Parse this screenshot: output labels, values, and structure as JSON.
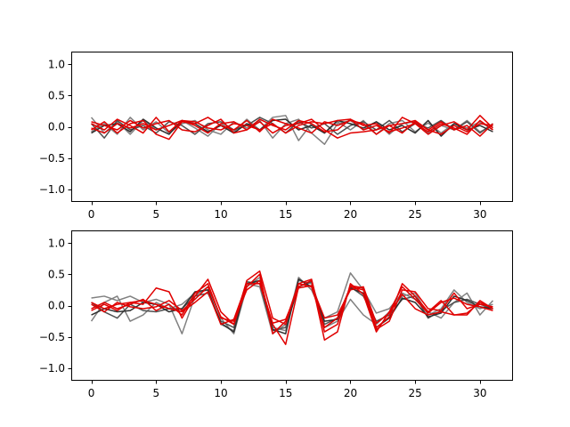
{
  "chart_data": [
    {
      "type": "line",
      "title": "",
      "xlabel": "",
      "ylabel": "",
      "xlim": [
        -1.55,
        32.55
      ],
      "ylim": [
        -1.2,
        1.2
      ],
      "xticks": [
        0,
        5,
        10,
        15,
        20,
        25,
        30
      ],
      "yticks": [
        -1.0,
        -0.5,
        0.0,
        0.5,
        1.0
      ],
      "xtick_labels": [
        "0",
        "5",
        "10",
        "15",
        "20",
        "25",
        "30"
      ],
      "ytick_labels": [
        "−1.0",
        "−0.5",
        "0.0",
        "0.5",
        "1.0"
      ],
      "grid": false,
      "legend": "none",
      "x": [
        0,
        1,
        2,
        3,
        4,
        5,
        6,
        7,
        8,
        9,
        10,
        11,
        12,
        13,
        14,
        15,
        16,
        17,
        18,
        19,
        20,
        21,
        22,
        23,
        24,
        25,
        26,
        27,
        28,
        29,
        30,
        31
      ],
      "series": [
        {
          "color": "#808080",
          "values": [
            0.15,
            -0.1,
            0.08,
            -0.12,
            0.1,
            -0.05,
            0.02,
            0.1,
            -0.02,
            -0.15,
            0.05,
            -0.08,
            0.12,
            -0.05,
            0.15,
            0.18,
            -0.22,
            0.05,
            -0.1,
            0.08,
            -0.05,
            0.1,
            -0.12,
            0.05,
            0.1,
            -0.08,
            0.06,
            -0.1,
            0.05,
            -0.02,
            0.08,
            -0.05
          ]
        },
        {
          "color": "#808080",
          "values": [
            -0.08,
            0.05,
            -0.12,
            0.15,
            -0.05,
            0.08,
            -0.1,
            0.05,
            0.1,
            -0.05,
            -0.12,
            0.08,
            -0.02,
            0.1,
            -0.18,
            0.05,
            0.12,
            -0.1,
            -0.28,
            0.05,
            0.1,
            -0.05,
            0.08,
            -0.12,
            0.05,
            0.08,
            -0.1,
            0.02,
            -0.05,
            0.1,
            -0.08,
            0.02
          ]
        },
        {
          "color": "#505050",
          "values": [
            0.05,
            -0.18,
            0.1,
            -0.05,
            0.02,
            -0.1,
            0.08,
            0.02,
            -0.12,
            0.05,
            0.08,
            -0.05,
            0.02,
            0.15,
            0.05,
            -0.1,
            0.08,
            -0.02,
            0.05,
            -0.12,
            0.02,
            0.08,
            -0.05,
            0.1,
            -0.08,
            0.05,
            -0.02,
            0.1,
            -0.05,
            0.08,
            -0.1,
            0.05
          ]
        },
        {
          "color": "#303030",
          "values": [
            -0.1,
            0.02,
            0.05,
            -0.08,
            0.12,
            -0.02,
            -0.12,
            0.1,
            0.05,
            -0.08,
            0.02,
            -0.1,
            0.05,
            -0.05,
            0.1,
            0.12,
            -0.05,
            0.02,
            -0.1,
            0.1,
            0.05,
            -0.02,
            0.08,
            -0.05,
            0.02,
            -0.1,
            0.1,
            -0.15,
            0.05,
            -0.05,
            0.02,
            -0.08
          ]
        },
        {
          "color": "#e00000",
          "values": [
            0.05,
            -0.05,
            0.12,
            0.02,
            -0.1,
            0.15,
            -0.08,
            0.1,
            0.02,
            -0.1,
            0.05,
            0.08,
            -0.05,
            0.12,
            0.02,
            -0.05,
            0.1,
            0.05,
            -0.08,
            -0.05,
            0.12,
            0.02,
            0.05,
            -0.1,
            0.15,
            0.05,
            -0.12,
            0.02,
            0.08,
            -0.05,
            0.18,
            -0.02
          ]
        },
        {
          "color": "#e00000",
          "values": [
            -0.05,
            0.08,
            -0.1,
            0.05,
            0.1,
            -0.12,
            -0.2,
            0.08,
            0.05,
            0.15,
            0.02,
            -0.05,
            0.1,
            -0.08,
            0.12,
            0.05,
            -0.02,
            -0.1,
            0.08,
            0.02,
            0.1,
            0.05,
            -0.12,
            0.02,
            0.05,
            0.1,
            -0.05,
            0.08,
            -0.05,
            0.02,
            -0.15,
            0.05
          ]
        },
        {
          "color": "#e00000",
          "values": [
            0.08,
            0.02,
            -0.05,
            0.1,
            -0.02,
            0.05,
            0.1,
            -0.05,
            -0.08,
            0.02,
            0.12,
            -0.1,
            -0.05,
            0.08,
            -0.1,
            0.02,
            0.05,
            0.12,
            -0.05,
            -0.18,
            -0.1,
            -0.08,
            -0.05,
            0.02,
            -0.1,
            0.08,
            -0.05,
            -0.12,
            0.02,
            -0.08,
            0.05,
            0.02
          ]
        },
        {
          "color": "#e00000",
          "values": [
            -0.02,
            -0.1,
            0.05,
            -0.02,
            0.05,
            -0.05,
            0.02,
            0.1,
            0.08,
            -0.02,
            -0.05,
            0.05,
            0.02,
            -0.05,
            0.05,
            -0.1,
            0.02,
            0.08,
            0.05,
            0.1,
            0.12,
            -0.05,
            0.02,
            -0.08,
            -0.02,
            0.05,
            -0.08,
            0.05,
            -0.02,
            -0.12,
            0.1,
            -0.05
          ]
        }
      ]
    },
    {
      "type": "line",
      "title": "",
      "xlabel": "",
      "ylabel": "",
      "xlim": [
        -1.55,
        32.55
      ],
      "ylim": [
        -1.2,
        1.2
      ],
      "xticks": [
        0,
        5,
        10,
        15,
        20,
        25,
        30
      ],
      "yticks": [
        -1.0,
        -0.5,
        0.0,
        0.5,
        1.0
      ],
      "xtick_labels": [
        "0",
        "5",
        "10",
        "15",
        "20",
        "25",
        "30"
      ],
      "ytick_labels": [
        "−1.0",
        "−0.5",
        "0.0",
        "0.5",
        "1.0"
      ],
      "grid": false,
      "legend": "none",
      "x": [
        0,
        1,
        2,
        3,
        4,
        5,
        6,
        7,
        8,
        9,
        10,
        11,
        12,
        13,
        14,
        15,
        16,
        17,
        18,
        19,
        20,
        21,
        22,
        23,
        24,
        25,
        26,
        27,
        28,
        29,
        30,
        31
      ],
      "series": [
        {
          "color": "#808080",
          "values": [
            0.12,
            0.15,
            0.08,
            0.15,
            0.05,
            0.1,
            0.02,
            -0.45,
            0.15,
            0.3,
            -0.2,
            -0.45,
            0.3,
            0.45,
            -0.35,
            -0.4,
            0.45,
            0.25,
            -0.2,
            -0.1,
            0.52,
            0.25,
            -0.12,
            -0.05,
            0.2,
            0.1,
            -0.1,
            -0.2,
            0.05,
            0.2,
            -0.15,
            0.08
          ]
        },
        {
          "color": "#808080",
          "values": [
            -0.25,
            0.05,
            0.15,
            -0.25,
            -0.15,
            0.05,
            -0.05,
            0.02,
            0.2,
            0.25,
            -0.3,
            -0.4,
            0.35,
            0.3,
            -0.45,
            -0.3,
            0.4,
            0.35,
            -0.35,
            -0.25,
            0.1,
            -0.15,
            -0.3,
            -0.1,
            0.15,
            0.2,
            -0.15,
            -0.05,
            0.25,
            0.05,
            -0.05,
            0.02
          ]
        },
        {
          "color": "#505050",
          "values": [
            0.05,
            -0.1,
            -0.2,
            0.02,
            -0.08,
            -0.1,
            -0.05,
            -0.05,
            0.15,
            0.2,
            -0.25,
            -0.35,
            0.38,
            0.35,
            -0.4,
            -0.35,
            0.3,
            0.38,
            -0.3,
            -0.2,
            0.3,
            0.15,
            -0.25,
            -0.15,
            0.1,
            0.15,
            -0.2,
            -0.08,
            0.05,
            0.1,
            0.02,
            -0.05
          ]
        },
        {
          "color": "#303030",
          "values": [
            -0.15,
            -0.05,
            -0.1,
            -0.08,
            0.05,
            0.02,
            -0.1,
            -0.05,
            0.22,
            0.25,
            -0.28,
            -0.42,
            0.35,
            0.4,
            -0.38,
            -0.45,
            0.42,
            0.3,
            -0.25,
            -0.22,
            0.28,
            0.2,
            -0.35,
            -0.2,
            0.12,
            0.05,
            -0.18,
            -0.12,
            0.15,
            0.08,
            -0.02,
            -0.05
          ]
        },
        {
          "color": "#e00000",
          "values": [
            0.05,
            -0.05,
            0.02,
            0.05,
            0.02,
            0.28,
            0.22,
            -0.2,
            0.15,
            0.42,
            -0.1,
            -0.3,
            0.4,
            0.55,
            -0.2,
            -0.3,
            0.35,
            0.3,
            -0.35,
            -0.2,
            0.3,
            0.25,
            -0.35,
            -0.18,
            0.35,
            0.15,
            -0.1,
            0.08,
            -0.15,
            -0.12,
            0.05,
            -0.05
          ]
        },
        {
          "color": "#e00000",
          "values": [
            -0.05,
            0.05,
            -0.05,
            0.02,
            0.1,
            -0.08,
            0.02,
            -0.15,
            0.2,
            0.35,
            -0.2,
            -0.25,
            0.25,
            0.4,
            -0.3,
            -0.62,
            0.3,
            0.4,
            -0.55,
            -0.42,
            0.35,
            0.18,
            -0.42,
            -0.1,
            0.3,
            0.1,
            -0.12,
            0.05,
            0.12,
            0.02,
            -0.02,
            -0.08
          ]
        },
        {
          "color": "#e00000",
          "values": [
            0.02,
            -0.1,
            0.05,
            -0.02,
            -0.05,
            -0.02,
            0.08,
            -0.08,
            0.1,
            0.3,
            -0.18,
            -0.3,
            0.3,
            0.5,
            -0.45,
            -0.25,
            0.35,
            0.42,
            -0.42,
            -0.3,
            0.32,
            0.28,
            -0.38,
            -0.25,
            0.25,
            0.22,
            -0.05,
            -0.08,
            0.2,
            -0.05,
            0.02,
            -0.02
          ]
        },
        {
          "color": "#e00000",
          "values": [
            -0.08,
            0.02,
            -0.08,
            0.05,
            0.08,
            0.02,
            -0.05,
            -0.1,
            0.05,
            0.22,
            -0.3,
            -0.22,
            0.35,
            0.35,
            -0.28,
            -0.22,
            0.28,
            0.32,
            -0.2,
            -0.15,
            0.25,
            0.3,
            -0.28,
            -0.12,
            0.18,
            -0.05,
            -0.15,
            -0.1,
            -0.15,
            -0.15,
            0.08,
            -0.05
          ]
        }
      ]
    }
  ]
}
